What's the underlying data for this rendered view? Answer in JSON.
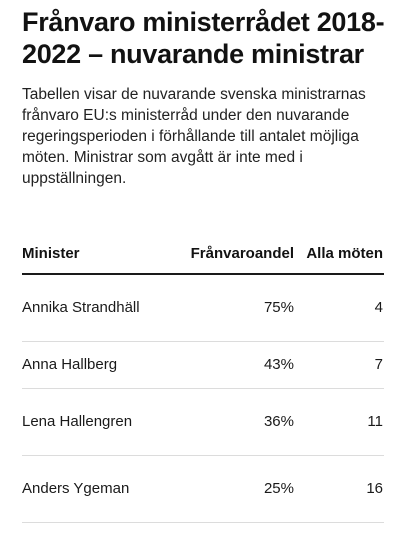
{
  "title": "Frånvaro ministerrådet 2018-2022 – nuvarande ministrar",
  "description": "Tabellen visar de nuvarande svenska ministrarnas frånvaro EU:s ministerråd under den nuvarande regeringsperioden i förhållande till antalet möjliga möten. Ministrar som avgått är inte med i uppställningen.",
  "table": {
    "headers": {
      "minister": "Minister",
      "share": "Frånvaroandel",
      "all_meetings": "Alla möten"
    },
    "rows": [
      {
        "minister": "Annika Strandhäll",
        "share": "75%",
        "all_meetings": "4"
      },
      {
        "minister": "Anna Hallberg",
        "share": "43%",
        "all_meetings": "7"
      },
      {
        "minister": "Lena Hallengren",
        "share": "36%",
        "all_meetings": "11"
      },
      {
        "minister": "Anders Ygeman",
        "share": "25%",
        "all_meetings": "16"
      }
    ]
  },
  "colors": {
    "text": "#1a1a1a",
    "rule": "#1a1a1a",
    "row_divider": "#dcdcdc",
    "background": "#ffffff"
  }
}
